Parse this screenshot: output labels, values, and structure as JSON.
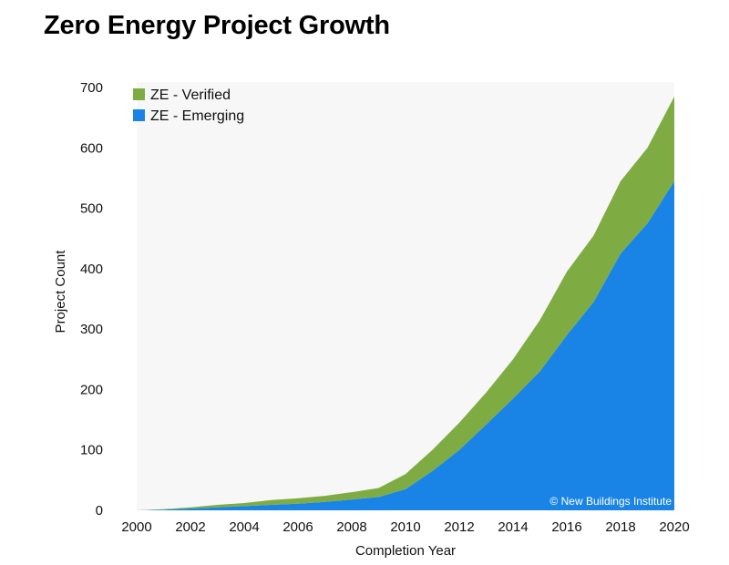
{
  "title": "Zero Energy Project Growth",
  "chart_data": {
    "type": "area",
    "stacked": true,
    "x": [
      2000,
      2001,
      2002,
      2003,
      2004,
      2005,
      2006,
      2007,
      2008,
      2009,
      2010,
      2011,
      2012,
      2013,
      2014,
      2015,
      2016,
      2017,
      2018,
      2019,
      2020
    ],
    "series": [
      {
        "name": "ZE - Emerging",
        "color": "#1a84e6",
        "values": [
          0,
          1,
          3,
          5,
          7,
          9,
          11,
          14,
          18,
          22,
          35,
          65,
          100,
          142,
          185,
          230,
          290,
          345,
          425,
          475,
          545
        ]
      },
      {
        "name": "ZE - Verified",
        "color": "#7fac42",
        "values": [
          0,
          1,
          2,
          4,
          5,
          8,
          9,
          10,
          12,
          15,
          25,
          35,
          45,
          53,
          65,
          85,
          105,
          110,
          120,
          125,
          140
        ]
      }
    ],
    "xlabel": "Completion Year",
    "ylabel": "Project Count",
    "xlim": [
      2000,
      2020
    ],
    "ylim": [
      0,
      700
    ],
    "xticks": [
      "2000",
      "2002",
      "2004",
      "2006",
      "2008",
      "2010",
      "2012",
      "2014",
      "2016",
      "2018",
      "2020"
    ],
    "yticks": [
      "0",
      "100",
      "200",
      "300",
      "400",
      "500",
      "600",
      "700"
    ],
    "grid": false,
    "legend_position": "top-left",
    "plot_background": "#f7f7f7",
    "credit": "© New Buildings Institute"
  }
}
